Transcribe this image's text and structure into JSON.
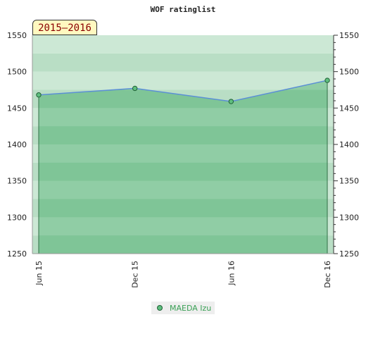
{
  "chart_data": {
    "type": "line",
    "title": "WOF ratinglist",
    "period_label": "2015–2016",
    "categories": [
      "Jun 15",
      "Dec 15",
      "Jun 16",
      "Dec 16"
    ],
    "series": [
      {
        "name": "MAEDA Izu",
        "values": [
          1468,
          1477,
          1459,
          1488
        ]
      }
    ],
    "ylim": [
      1250,
      1550
    ],
    "yticks": [
      1250,
      1300,
      1350,
      1400,
      1450,
      1500,
      1550
    ],
    "grid": true,
    "legend": "bottom",
    "colors": {
      "line": "#5b8fd6",
      "marker": "#5fbf7f",
      "marker_edge": "#1f5f35",
      "fill": "#7cc494",
      "band_dark": "#7cc494",
      "band_light": "#b4dcc0",
      "legend_text": "#3aa055"
    }
  }
}
